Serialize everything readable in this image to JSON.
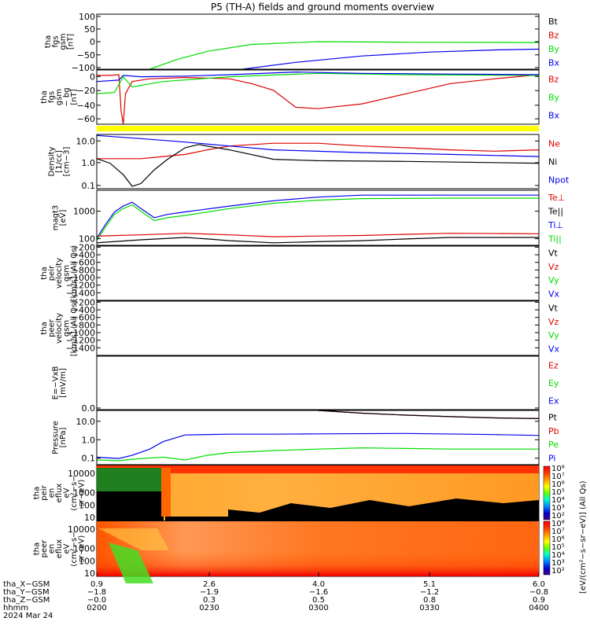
{
  "title": "P5 (TH-A) fields and ground moments overview",
  "colors": {
    "black": "#000000",
    "red": "#dd0000",
    "green": "#00dd00",
    "blue": "#0000ee",
    "yellow": "#ffff00"
  },
  "chart_data": [
    {
      "type": "line",
      "id": "p1",
      "ylabel": [
        "tha",
        "fgs",
        "gsm",
        "[nT]"
      ],
      "yticks": [
        "100",
        "50",
        "0",
        "−50",
        "−100"
      ],
      "ylim": [
        -100,
        100
      ],
      "legend": [
        {
          "label": "Bt",
          "color": "#000000"
        },
        {
          "label": "Bz",
          "color": "#dd0000"
        },
        {
          "label": "By",
          "color": "#00dd00"
        },
        {
          "label": "Bx",
          "color": "#0000ee"
        }
      ],
      "series": [
        {
          "name": "By",
          "color": "#00dd00",
          "x": [
            0.12,
            0.18,
            0.25,
            0.35,
            0.5,
            0.7,
            1.0
          ],
          "y": [
            -100,
            -65,
            -35,
            -10,
            0,
            -2,
            -3
          ]
        },
        {
          "name": "Bx",
          "color": "#0000ee",
          "x": [
            0.33,
            0.45,
            0.6,
            0.75,
            0.9,
            1.0
          ],
          "y": [
            -100,
            -75,
            -52,
            -38,
            -30,
            -27
          ]
        }
      ]
    },
    {
      "type": "line",
      "id": "p2",
      "ylabel": [
        "tha",
        "fgs",
        "gsm",
        "− bg",
        "[nT]"
      ],
      "yticks": [
        "0",
        "−20",
        "−40",
        "−60"
      ],
      "ylim": [
        -75,
        5
      ],
      "legend": [
        {
          "label": "Bz",
          "color": "#dd0000"
        },
        {
          "label": "By",
          "color": "#00dd00"
        },
        {
          "label": "Bx",
          "color": "#0000ee"
        }
      ],
      "series": [
        {
          "name": "Bz",
          "color": "#dd0000",
          "x": [
            0,
            0.03,
            0.05,
            0.055,
            0.06,
            0.065,
            0.08,
            0.12,
            0.2,
            0.3,
            0.35,
            0.4,
            0.45,
            0.5,
            0.6,
            0.7,
            0.8,
            0.9,
            1.0
          ],
          "y": [
            -3,
            -3,
            -2,
            -55,
            -75,
            -30,
            -12,
            -8,
            -6,
            -8,
            -15,
            -25,
            -50,
            -52,
            -45,
            -30,
            -15,
            -8,
            -2
          ]
        },
        {
          "name": "By",
          "color": "#00dd00",
          "x": [
            0,
            0.04,
            0.06,
            0.08,
            0.15,
            0.3,
            0.5,
            0.7,
            1.0
          ],
          "y": [
            -30,
            -28,
            -5,
            -20,
            -12,
            -5,
            0,
            -2,
            -3
          ]
        },
        {
          "name": "Bx",
          "color": "#0000ee",
          "x": [
            0,
            0.05,
            0.06,
            0.1,
            0.2,
            0.3,
            0.45,
            0.6,
            0.8,
            1.0
          ],
          "y": [
            -12,
            -10,
            -3,
            -5,
            -4,
            -2,
            2,
            0,
            -1,
            -2
          ]
        }
      ]
    },
    {
      "type": "line",
      "id": "p3",
      "ylabel": [
        "Density",
        "[1/cc]",
        "[cm−3]"
      ],
      "yticks": [
        "10.0",
        "1.0",
        "0.1"
      ],
      "log": true,
      "ylim": [
        0.07,
        20
      ],
      "legend": [
        {
          "label": "Ne",
          "color": "#dd0000"
        },
        {
          "label": "Ni",
          "color": "#000000"
        },
        {
          "label": "Npot",
          "color": "#0000ee"
        }
      ],
      "series": [
        {
          "name": "Ne",
          "color": "#dd0000",
          "x": [
            0,
            0.1,
            0.15,
            0.2,
            0.25,
            0.3,
            0.4,
            0.5,
            0.6,
            0.7,
            0.8,
            0.9,
            1.0
          ],
          "y": [
            1.6,
            1.6,
            2,
            2.5,
            4,
            6,
            8,
            8,
            6,
            5,
            4,
            3.5,
            4
          ]
        },
        {
          "name": "Ni",
          "color": "#000000",
          "x": [
            0,
            0.03,
            0.06,
            0.08,
            0.1,
            0.13,
            0.16,
            0.2,
            0.23,
            0.3,
            0.4,
            0.5,
            0.7,
            1.0
          ],
          "y": [
            1.6,
            1.0,
            0.3,
            0.09,
            0.12,
            0.5,
            1.5,
            5,
            7,
            4,
            1.5,
            1.3,
            1.2,
            1.0
          ]
        },
        {
          "name": "Npot",
          "color": "#0000ee",
          "x": [
            0,
            0.1,
            0.2,
            0.3,
            0.4,
            0.6,
            0.8,
            1.0
          ],
          "y": [
            18,
            13,
            9,
            6,
            4,
            3,
            2.5,
            2
          ]
        }
      ]
    },
    {
      "type": "line",
      "id": "p4",
      "ylabel": [
        "magt3",
        "[eV]"
      ],
      "yticks": [
        "1000",
        "100"
      ],
      "log": true,
      "ylim": [
        80,
        10000
      ],
      "legend": [
        {
          "label": "Te⊥",
          "color": "#dd0000"
        },
        {
          "label": "Te||",
          "color": "#000000"
        },
        {
          "label": "Ti⊥",
          "color": "#0000ee"
        },
        {
          "label": "Ti||",
          "color": "#00dd00"
        }
      ],
      "series": [
        {
          "name": "Ti⊥",
          "color": "#0000ee",
          "x": [
            0,
            0.02,
            0.04,
            0.06,
            0.08,
            0.1,
            0.13,
            0.16,
            0.2,
            0.3,
            0.4,
            0.5,
            0.6,
            0.8,
            1.0
          ],
          "y": [
            150,
            500,
            1500,
            2500,
            3500,
            2000,
            900,
            1200,
            1500,
            2500,
            4000,
            5500,
            6500,
            6500,
            6500
          ]
        },
        {
          "name": "Ti||",
          "color": "#00dd00",
          "x": [
            0,
            0.02,
            0.04,
            0.06,
            0.08,
            0.1,
            0.13,
            0.16,
            0.2,
            0.3,
            0.4,
            0.5,
            0.6,
            0.8,
            1.0
          ],
          "y": [
            120,
            400,
            1200,
            2000,
            2800,
            1600,
            700,
            900,
            1100,
            2000,
            3200,
            4200,
            4800,
            5000,
            5000
          ]
        },
        {
          "name": "Te⊥",
          "color": "#dd0000",
          "x": [
            0,
            0.1,
            0.2,
            0.3,
            0.4,
            0.5,
            0.6,
            0.7,
            0.8,
            1.0
          ],
          "y": [
            180,
            200,
            230,
            200,
            170,
            180,
            190,
            210,
            230,
            220
          ]
        },
        {
          "name": "Te||",
          "color": "#000000",
          "x": [
            0,
            0.1,
            0.2,
            0.25,
            0.3,
            0.4,
            0.5,
            0.6,
            0.7,
            0.8,
            1.0
          ],
          "y": [
            100,
            130,
            160,
            140,
            120,
            100,
            110,
            120,
            140,
            160,
            160
          ]
        }
      ]
    },
    {
      "type": "line",
      "id": "p5",
      "ylabel": [
        "tha",
        "peir",
        "velocity",
        "gsm",
        "[km/s] (All Qs)"
      ],
      "yticks": [
        "−200",
        "−400",
        "−600",
        "−800",
        "−1000",
        "−1200",
        "−1400"
      ],
      "ylim": [
        -1450,
        -150
      ],
      "legend": [
        {
          "label": "Vt",
          "color": "#000000"
        },
        {
          "label": "Vz",
          "color": "#dd0000"
        },
        {
          "label": "Vy",
          "color": "#00dd00"
        },
        {
          "label": "Vx",
          "color": "#0000ee"
        }
      ],
      "series": []
    },
    {
      "type": "line",
      "id": "p6",
      "ylabel": [
        "tha",
        "peer",
        "velocity",
        "gsm",
        "[km/s] (All Qs)"
      ],
      "yticks": [
        "−200",
        "−400",
        "−600",
        "−800",
        "−1000",
        "−1200",
        "−1400"
      ],
      "ylim": [
        -1450,
        -150
      ],
      "legend": [
        {
          "label": "Vt",
          "color": "#000000"
        },
        {
          "label": "Vz",
          "color": "#dd0000"
        },
        {
          "label": "Vy",
          "color": "#00dd00"
        },
        {
          "label": "Vx",
          "color": "#0000ee"
        }
      ],
      "series": []
    },
    {
      "type": "line",
      "id": "p7",
      "ylabel": [
        "E=−VxB",
        "[mV/m]"
      ],
      "yticks": [
        "0.0"
      ],
      "ylim": [
        0,
        1
      ],
      "legend": [
        {
          "label": "Ez",
          "color": "#dd0000"
        },
        {
          "label": "Ey",
          "color": "#00dd00"
        },
        {
          "label": "Ex",
          "color": "#0000ee"
        }
      ],
      "series": []
    },
    {
      "type": "line",
      "id": "p8",
      "ylabel": [
        "Pressure",
        "[nPa]"
      ],
      "yticks": [
        "10.0",
        "1.0",
        "0.1"
      ],
      "log": true,
      "ylim": [
        0.01,
        30
      ],
      "legend": [
        {
          "label": "Pt",
          "color": "#000000"
        },
        {
          "label": "Pb",
          "color": "#dd0000"
        },
        {
          "label": "Pe",
          "color": "#00dd00"
        },
        {
          "label": "Pi",
          "color": "#0000ee"
        }
      ],
      "series": [
        {
          "name": "Pb",
          "color": "#dd0000",
          "x": [
            0.5,
            0.6,
            0.7,
            0.8,
            0.9,
            1.0
          ],
          "y": [
            30,
            20,
            15,
            12,
            10,
            9
          ]
        },
        {
          "name": "Pt",
          "color": "#000000",
          "x": [
            0.5,
            0.6,
            0.7,
            0.8,
            0.9,
            1.0
          ],
          "y": [
            30,
            20,
            15,
            12,
            10,
            9
          ]
        },
        {
          "name": "Pi",
          "color": "#0000ee",
          "x": [
            0,
            0.05,
            0.08,
            0.12,
            0.15,
            0.2,
            0.3,
            0.4,
            0.5,
            0.7,
            0.9,
            1.0
          ],
          "y": [
            0.03,
            0.025,
            0.04,
            0.1,
            0.3,
            0.8,
            0.9,
            0.9,
            0.95,
            1.0,
            0.85,
            0.75
          ]
        },
        {
          "name": "Pe",
          "color": "#00dd00",
          "x": [
            0,
            0.05,
            0.1,
            0.15,
            0.2,
            0.25,
            0.3,
            0.4,
            0.5,
            0.6,
            0.8,
            1.0
          ],
          "y": [
            0.02,
            0.018,
            0.025,
            0.03,
            0.02,
            0.04,
            0.06,
            0.08,
            0.1,
            0.12,
            0.1,
            0.1
          ]
        }
      ]
    },
    {
      "type": "heatmap",
      "id": "p9",
      "ylabel": [
        "tha",
        "peir",
        "en",
        "eflux",
        "eV",
        "(cm²−s−",
        "sr−eV)"
      ],
      "yticks": [
        "10000",
        "1000",
        "100",
        "10"
      ]
    },
    {
      "type": "heatmap",
      "id": "p10",
      "ylabel": [
        "tha",
        "peer",
        "en",
        "eflux",
        "eV",
        "(cm²−s−",
        "sr−eV)"
      ],
      "yticks": [
        "10000",
        "1000",
        "100",
        "10"
      ]
    }
  ],
  "colorbar": {
    "ticks_top": [
      "10⁸",
      "10⁷",
      "10⁶",
      "10⁵",
      "10⁴",
      "10³",
      "10²"
    ],
    "ticks_bottom": [
      "10⁸",
      "10⁷",
      "10⁶",
      "10⁵",
      "10⁴",
      "10³",
      "10²"
    ],
    "label": "[eV/(cm²−s−sr−eV)] (All Qs)"
  },
  "xaxis": {
    "rows": [
      {
        "label": "tha_X−GSM",
        "values": [
          "0.9",
          "2.6",
          "4.0",
          "5.1",
          "6.0"
        ]
      },
      {
        "label": "tha_Y−GSM",
        "values": [
          "−1.8",
          "−1.9",
          "−1.6",
          "−1.2",
          "−0.8"
        ]
      },
      {
        "label": "tha_Z−GSM",
        "values": [
          "−0.0",
          "0.3",
          "0.5",
          "0.8",
          "0.9"
        ]
      },
      {
        "label": "hhmm",
        "values": [
          "0200",
          "0230",
          "0300",
          "0330",
          "0400"
        ]
      }
    ],
    "date": "2024 Mar 24"
  }
}
